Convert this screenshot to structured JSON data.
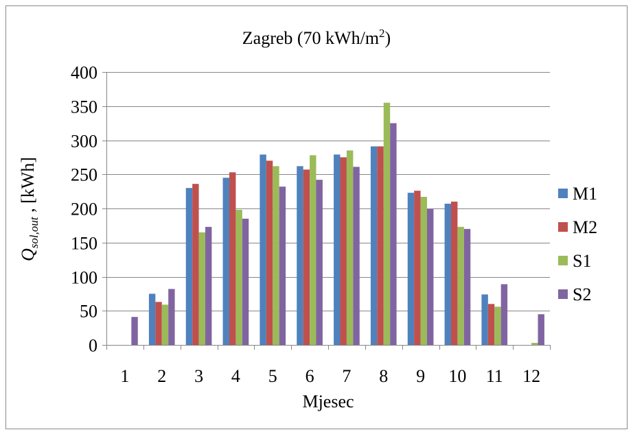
{
  "chart_data": {
    "type": "bar",
    "title": "Zagreb (70 kWh/m",
    "title_superscript": "2",
    "title_suffix": ")",
    "xlabel": "Mjesec",
    "ylabel": {
      "symbol": "Q",
      "subscript": "sol,out",
      "unit": " , [kWh]"
    },
    "ylim": [
      0,
      400
    ],
    "yticks": [
      "0",
      "50",
      "100",
      "150",
      "200",
      "250",
      "300",
      "350",
      "400"
    ],
    "grid": true,
    "legend_position": "right",
    "categories": [
      "1",
      "2",
      "3",
      "4",
      "5",
      "6",
      "7",
      "8",
      "9",
      "10",
      "11",
      "12"
    ],
    "series": [
      {
        "name": "M1",
        "color": "#4F81BD",
        "values": [
          0,
          75,
          230,
          245,
          279,
          262,
          279,
          291,
          223,
          207,
          74,
          0
        ]
      },
      {
        "name": "M2",
        "color": "#C0504D",
        "values": [
          0,
          63,
          236,
          253,
          270,
          257,
          275,
          291,
          226,
          210,
          60,
          0
        ]
      },
      {
        "name": "S1",
        "color": "#9BBB59",
        "values": [
          0,
          59,
          165,
          198,
          262,
          278,
          285,
          355,
          217,
          173,
          56,
          3
        ]
      },
      {
        "name": "S2",
        "color": "#8064A2",
        "values": [
          41,
          82,
          173,
          185,
          232,
          242,
          261,
          325,
          199,
          170,
          89,
          45
        ]
      }
    ]
  }
}
